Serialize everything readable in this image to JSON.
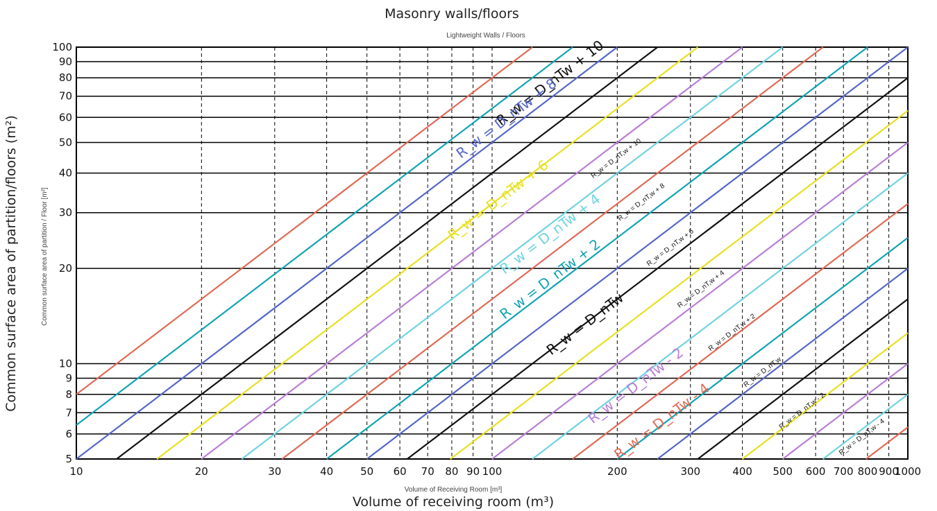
{
  "title_main": "Masonry walls/floors",
  "title_sub": "Lightweight Walls / Floors",
  "xlabel_main": "Volume of receiving room (m³)",
  "xlabel_sub": "Volume of Receiving Room [m³]",
  "ylabel_main": "Common surface area of partition/floors (m²)",
  "ylabel_sub": "Common surface area of partition / Floor [m²]",
  "colors": {
    "red": "#e06a55",
    "teal": "#12a3b4",
    "blue": "#5566c8",
    "black": "#111111",
    "yellow": "#e8e020",
    "violet": "#b77fd6",
    "cyan": "#6fd3e0"
  },
  "chart_data": {
    "type": "line",
    "x_scale": "log",
    "y_scale": "log",
    "xlim": [
      10,
      1000
    ],
    "ylim": [
      5,
      100
    ],
    "x_ticks": [
      "10",
      "20",
      "30",
      "40",
      "50",
      "60",
      "70",
      "80",
      "90",
      "100",
      "200",
      "300",
      "400",
      "500",
      "600",
      "700",
      "800",
      "900",
      "1000"
    ],
    "y_ticks": [
      "5",
      "6",
      "7",
      "8",
      "9",
      "10",
      "20",
      "30",
      "40",
      "50",
      "60",
      "70",
      "80",
      "90",
      "100"
    ],
    "grid_vertical": [
      10,
      20,
      30,
      40,
      50,
      60,
      70,
      80,
      90,
      100,
      200,
      300,
      400,
      500,
      600,
      700,
      800,
      900,
      1000
    ],
    "grid_horizontal": [
      5,
      6,
      7,
      8,
      9,
      10,
      20,
      30,
      40,
      50,
      60,
      70,
      80,
      90,
      100
    ],
    "line_relation": "S proportional to V (slope 1 on log-log axes)",
    "series": [
      {
        "label": "R_w = D_nTw + 10",
        "color": "red",
        "s_at_v100": 80
      },
      {
        "label": "R_w = D_nTw + 8",
        "color": "teal",
        "s_at_v100": 64
      },
      {
        "label": "R_w = D_nTw + 6",
        "color": "blue",
        "s_at_v100": 50
      },
      {
        "label": "R_w = D_nTw + 4",
        "color": "black",
        "s_at_v100": 40
      },
      {
        "label": "R_w = D_nTw + 2",
        "color": "yellow",
        "s_at_v100": 32
      },
      {
        "label": "R_w = D_nTw",
        "color": "violet",
        "s_at_v100": 25
      },
      {
        "label": "R_w = D_nTw - 2",
        "color": "cyan",
        "s_at_v100": 20
      },
      {
        "label": "R_w = D_nTw - 4",
        "color": "red",
        "s_at_v100": 16
      },
      {
        "label": "",
        "color": "teal",
        "s_at_v100": 12.5
      },
      {
        "label": "",
        "color": "blue",
        "s_at_v100": 10
      },
      {
        "label": "",
        "color": "black",
        "s_at_v100": 8
      },
      {
        "label": "",
        "color": "yellow",
        "s_at_v100": 6.3
      },
      {
        "label": "",
        "color": "violet",
        "s_at_v100": 5
      },
      {
        "label": "",
        "color": "cyan",
        "s_at_v100": 4
      },
      {
        "label": "",
        "color": "red",
        "s_at_v100": 3.2
      },
      {
        "label": "",
        "color": "teal",
        "s_at_v100": 2.5
      },
      {
        "label": "",
        "color": "blue",
        "s_at_v100": 2
      },
      {
        "label": "",
        "color": "black",
        "s_at_v100": 1.6
      },
      {
        "label": "",
        "color": "yellow",
        "s_at_v100": 1.25
      },
      {
        "label": "",
        "color": "violet",
        "s_at_v100": 1
      },
      {
        "label": "",
        "color": "cyan",
        "s_at_v100": 0.8
      },
      {
        "label": "",
        "color": "red",
        "s_at_v100": 0.63
      }
    ],
    "annotations_main": [
      {
        "text": "R_w = D_nTw + 10",
        "color": "black",
        "x": 140,
        "y": 75
      },
      {
        "text": "R_w = D_nTw + 8",
        "color": "blue",
        "x": 110,
        "y": 58
      },
      {
        "text": "R_w = D_nTw + 6",
        "color": "yellow",
        "x": 105,
        "y": 32
      },
      {
        "text": "R_w = D_nTw + 4",
        "color": "cyan",
        "x": 140,
        "y": 25
      },
      {
        "text": "R_w = D_nTw + 2",
        "color": "teal",
        "x": 140,
        "y": 18
      },
      {
        "text": "R_w = D_nTw",
        "color": "black",
        "x": 170,
        "y": 13
      },
      {
        "text": "R_w = D_nTw - 2",
        "color": "violet",
        "x": 225,
        "y": 8.3
      },
      {
        "text": "R_w = D_nTw - 4",
        "color": "red",
        "x": 260,
        "y": 6.4
      }
    ],
    "annotations_small": [
      {
        "text": "R_w = D_nT,w + 10",
        "x": 200,
        "y": 44
      },
      {
        "text": "R_w = D_nT,w + 8",
        "x": 230,
        "y": 32
      },
      {
        "text": "R_w = D_nT,w + 6",
        "x": 270,
        "y": 23
      },
      {
        "text": "R_w = D_nT,w + 4",
        "x": 320,
        "y": 17
      },
      {
        "text": "R_w = D_nT,w + 2",
        "x": 380,
        "y": 12.4
      },
      {
        "text": "R_w = D_nT,w",
        "x": 450,
        "y": 9.3
      },
      {
        "text": "R_w = D_nT,w - 2",
        "x": 560,
        "y": 7
      },
      {
        "text": "R_w = D_nT,w - 4",
        "x": 780,
        "y": 5.8
      }
    ]
  }
}
